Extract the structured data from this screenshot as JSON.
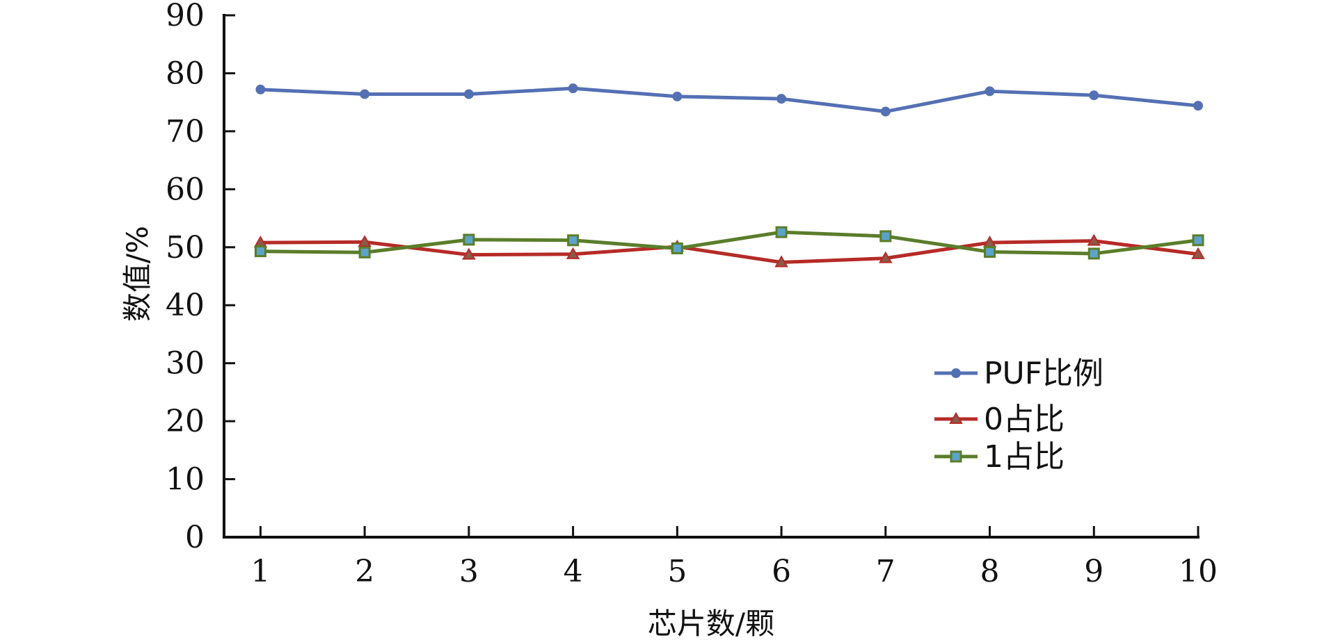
{
  "chart_data": {
    "type": "line",
    "title": "",
    "xlabel": "芯片数/颗",
    "ylabel": "数值/%",
    "x": [
      1,
      2,
      3,
      4,
      5,
      6,
      7,
      8,
      9,
      10
    ],
    "xlim": [
      0.65,
      10.0
    ],
    "ylim": [
      0,
      90
    ],
    "yticks": [
      0,
      10,
      20,
      30,
      40,
      50,
      60,
      70,
      80,
      90
    ],
    "grid": false,
    "legend_position": "lower-right",
    "series": [
      {
        "name": "PUF比例",
        "color": "#5470b4",
        "marker": "circle",
        "values": [
          77.2,
          76.4,
          76.4,
          77.4,
          76.0,
          75.6,
          73.4,
          76.9,
          76.2,
          74.4
        ]
      },
      {
        "name": "0占比",
        "color": "#b52b27",
        "marker": "triangle",
        "values": [
          50.8,
          50.9,
          48.7,
          48.8,
          50.1,
          47.4,
          48.1,
          50.8,
          51.1,
          48.8
        ]
      },
      {
        "name": "1占比",
        "color": "#5a7d2a",
        "marker": "square",
        "marker_fill": "#5ba3c7",
        "values": [
          49.3,
          49.1,
          51.3,
          51.2,
          49.8,
          52.6,
          51.9,
          49.2,
          48.9,
          51.2
        ]
      }
    ]
  }
}
